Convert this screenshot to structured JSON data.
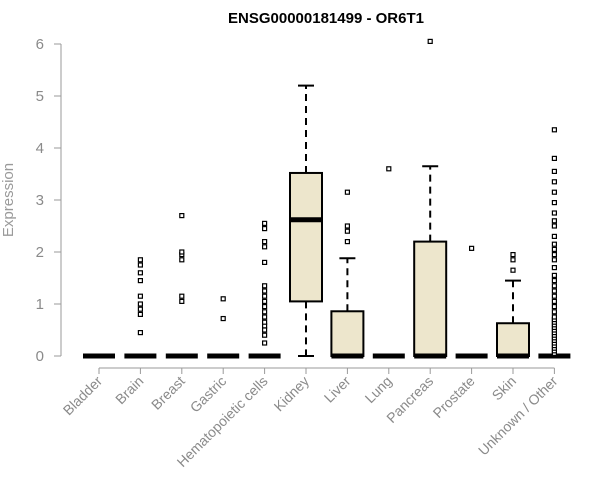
{
  "chart_data": {
    "type": "boxplot",
    "title": "ENSG00000181499 - OR6T1",
    "ylabel": "Expression",
    "xlabel": "",
    "ylim": [
      0,
      6
    ],
    "yticks": [
      "0",
      "1",
      "2",
      "3",
      "4",
      "5",
      "6"
    ],
    "categories": [
      "Bladder",
      "Brain",
      "Breast",
      "Gastric",
      "Hematopoietic cells",
      "Kidney",
      "Liver",
      "Lung",
      "Pancreas",
      "Prostate",
      "Skin",
      "Unknown / Other"
    ],
    "box_color": "#ede6cc",
    "boxes": [
      {
        "q1": 0,
        "median": 0,
        "q3": 0,
        "whisker_low": 0,
        "whisker_high": 0,
        "outliers": []
      },
      {
        "q1": 0,
        "median": 0,
        "q3": 0,
        "whisker_low": 0,
        "whisker_high": 0,
        "outliers": [
          0.45,
          0.8,
          0.9,
          1.0,
          1.15,
          1.45,
          1.6,
          1.75,
          1.85
        ]
      },
      {
        "q1": 0,
        "median": 0,
        "q3": 0,
        "whisker_low": 0,
        "whisker_high": 0,
        "outliers": [
          1.05,
          1.15,
          1.85,
          1.95,
          2.0,
          2.7
        ]
      },
      {
        "q1": 0,
        "median": 0,
        "q3": 0,
        "whisker_low": 0,
        "whisker_high": 0,
        "outliers": [
          0.72,
          1.1
        ]
      },
      {
        "q1": 0,
        "median": 0,
        "q3": 0,
        "whisker_low": 0,
        "whisker_high": 0,
        "outliers": [
          0.25,
          0.4,
          0.5,
          0.58,
          0.65,
          0.75,
          0.85,
          0.95,
          1.05,
          1.15,
          1.25,
          1.35,
          1.8,
          2.1,
          2.2,
          2.45,
          2.55
        ]
      },
      {
        "q1": 1.05,
        "median": 2.62,
        "q3": 3.52,
        "whisker_low": 0,
        "whisker_high": 5.2,
        "outliers": []
      },
      {
        "q1": 0,
        "median": 0,
        "q3": 0.86,
        "whisker_low": 0,
        "whisker_high": 1.88,
        "outliers": [
          2.2,
          2.4,
          2.5,
          3.15
        ]
      },
      {
        "q1": 0,
        "median": 0,
        "q3": 0,
        "whisker_low": 0,
        "whisker_high": 0,
        "outliers": [
          3.6
        ]
      },
      {
        "q1": 0,
        "median": 0,
        "q3": 2.2,
        "whisker_low": 0,
        "whisker_high": 3.65,
        "outliers": [
          6.05
        ]
      },
      {
        "q1": 0,
        "median": 0,
        "q3": 0,
        "whisker_low": 0,
        "whisker_high": 0,
        "outliers": [
          2.07
        ]
      },
      {
        "q1": 0,
        "median": 0,
        "q3": 0.63,
        "whisker_low": 0,
        "whisker_high": 1.45,
        "outliers": [
          1.65,
          1.85,
          1.95
        ]
      },
      {
        "q1": 0,
        "median": 0,
        "q3": 0,
        "whisker_low": 0,
        "whisker_high": 0,
        "outliers": [
          0.05,
          0.1,
          0.15,
          0.2,
          0.25,
          0.3,
          0.35,
          0.4,
          0.45,
          0.5,
          0.55,
          0.6,
          0.65,
          0.7,
          0.75,
          0.85,
          0.95,
          1.05,
          1.15,
          1.25,
          1.35,
          1.45,
          1.55,
          1.7,
          1.85,
          1.95,
          2.05,
          2.15,
          2.3,
          2.5,
          2.6,
          2.75,
          2.95,
          3.15,
          3.35,
          3.55,
          3.8,
          4.35
        ]
      }
    ]
  }
}
